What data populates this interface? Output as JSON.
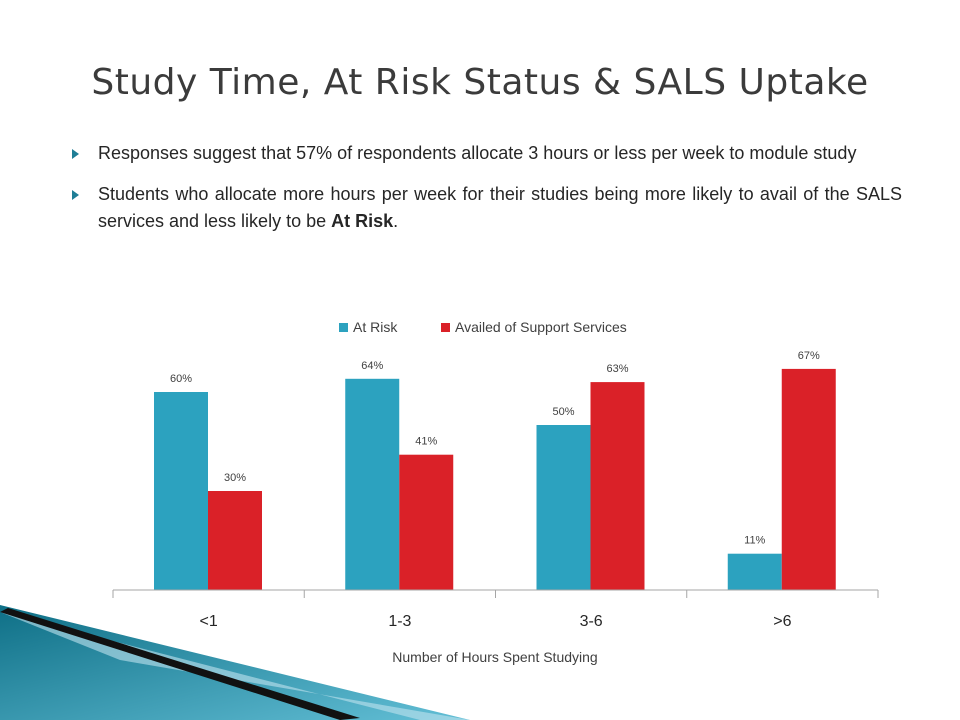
{
  "slide": {
    "title": "Study Time, At Risk Status & SALS Uptake",
    "bullets": [
      {
        "text": "Responses suggest that 57% of respondents allocate 3 hours or less per week to module study"
      },
      {
        "text_before": "Students who allocate more hours per week for their studies being more likely to avail of the SALS services and less likely to be ",
        "text_bold": "At Risk",
        "text_after": "."
      }
    ]
  },
  "chart_data": {
    "type": "bar",
    "categories": [
      "<1",
      "1-3",
      "3-6",
      ">6"
    ],
    "series": [
      {
        "name": "At Risk",
        "color": "#2ca2bf",
        "values": [
          60,
          64,
          50,
          11
        ],
        "labels": [
          "60%",
          "64%",
          "50%",
          "11%"
        ]
      },
      {
        "name": "Availed of Support Services",
        "color": "#da2128",
        "values": [
          30,
          41,
          63,
          67
        ],
        "labels": [
          "30%",
          "41%",
          "63%",
          "67%"
        ]
      }
    ],
    "xlabel": "Number of Hours Spent Studying",
    "ylabel": "",
    "ylim": [
      0,
      80
    ],
    "legend": "top-center",
    "grid": false
  }
}
